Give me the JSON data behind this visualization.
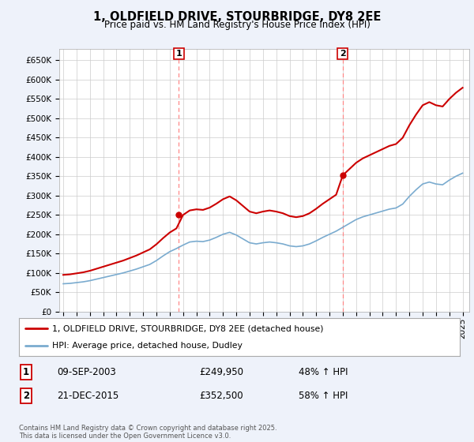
{
  "title": "1, OLDFIELD DRIVE, STOURBRIDGE, DY8 2EE",
  "subtitle": "Price paid vs. HM Land Registry's House Price Index (HPI)",
  "ylim": [
    0,
    680000
  ],
  "yticks": [
    0,
    50000,
    100000,
    150000,
    200000,
    250000,
    300000,
    350000,
    400000,
    450000,
    500000,
    550000,
    600000,
    650000
  ],
  "xlim_start": 1994.7,
  "xlim_end": 2025.5,
  "sale1_x": 2003.69,
  "sale1_y": 249950,
  "sale2_x": 2015.98,
  "sale2_y": 352500,
  "line1_color": "#cc0000",
  "line2_color": "#7aabcf",
  "vline_color": "#ff8888",
  "legend1": "1, OLDFIELD DRIVE, STOURBRIDGE, DY8 2EE (detached house)",
  "legend2": "HPI: Average price, detached house, Dudley",
  "annotation1_date": "09-SEP-2003",
  "annotation1_price": "£249,950",
  "annotation1_hpi": "48% ↑ HPI",
  "annotation2_date": "21-DEC-2015",
  "annotation2_price": "£352,500",
  "annotation2_hpi": "58% ↑ HPI",
  "copyright": "Contains HM Land Registry data © Crown copyright and database right 2025.\nThis data is licensed under the Open Government Licence v3.0.",
  "bg_color": "#eef2fa",
  "plot_bg_color": "#ffffff",
  "grid_color": "#cccccc",
  "hpi_blue": [
    72000,
    73000,
    75000,
    77000,
    80000,
    84000,
    88000,
    92000,
    96000,
    100000,
    105000,
    110000,
    116000,
    122000,
    132000,
    144000,
    155000,
    163000,
    172000,
    180000,
    182000,
    181000,
    185000,
    192000,
    200000,
    205000,
    198000,
    188000,
    178000,
    175000,
    178000,
    180000,
    178000,
    175000,
    170000,
    168000,
    170000,
    175000,
    183000,
    192000,
    200000,
    208000,
    218000,
    228000,
    238000,
    245000,
    250000,
    255000,
    260000,
    265000,
    268000,
    278000,
    298000,
    315000,
    330000,
    335000,
    330000,
    328000,
    340000,
    350000,
    358000
  ],
  "years_hpi": [
    1995.0,
    1995.5,
    1996.0,
    1996.5,
    1997.0,
    1997.5,
    1998.0,
    1998.5,
    1999.0,
    1999.5,
    2000.0,
    2000.5,
    2001.0,
    2001.5,
    2002.0,
    2002.5,
    2003.0,
    2003.5,
    2004.0,
    2004.5,
    2005.0,
    2005.5,
    2006.0,
    2006.5,
    2007.0,
    2007.5,
    2008.0,
    2008.5,
    2009.0,
    2009.5,
    2010.0,
    2010.5,
    2011.0,
    2011.5,
    2012.0,
    2012.5,
    2013.0,
    2013.5,
    2014.0,
    2014.5,
    2015.0,
    2015.5,
    2016.0,
    2016.5,
    2017.0,
    2017.5,
    2018.0,
    2018.5,
    2019.0,
    2019.5,
    2020.0,
    2020.5,
    2021.0,
    2021.5,
    2022.0,
    2022.5,
    2023.0,
    2023.5,
    2024.0,
    2024.5,
    2025.0
  ]
}
